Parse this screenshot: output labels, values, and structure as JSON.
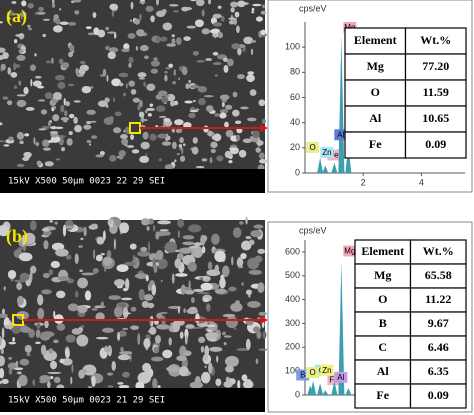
{
  "panels": [
    {
      "label": "(a)",
      "sem_bar": "15kV  X500  50μm  0023 22 29 SEI",
      "spectrum": {
        "unit": "cps/eV",
        "xlim": [
          0,
          5.5
        ],
        "ylim": [
          0,
          120
        ],
        "xticks": [
          2,
          4
        ],
        "yticks": [
          0,
          20,
          40,
          60,
          80,
          100
        ],
        "peaks": [
          {
            "label": "O",
            "x": 0.52,
            "y": 12,
            "color": "#e6ef8a"
          },
          {
            "label": "Fe",
            "x": 0.7,
            "y": 6,
            "color": "#f4b4c8"
          },
          {
            "label": "Zn",
            "x": 1.01,
            "y": 8,
            "color": "#a9e4f2"
          },
          {
            "label": "Mg",
            "x": 1.25,
            "y": 108,
            "color": "#f4a6b8"
          },
          {
            "label": "Al",
            "x": 1.49,
            "y": 22,
            "color": "#5b7bd8"
          }
        ]
      },
      "table": {
        "header": [
          "Element",
          "Wt.%"
        ],
        "rows": [
          [
            "Mg",
            "77.20"
          ],
          [
            "O",
            "11.59"
          ],
          [
            "Al",
            "10.65"
          ],
          [
            "Fe",
            "0.09"
          ]
        ]
      }
    },
    {
      "label": "(b)",
      "sem_bar": "15kV  X500  50μm  0023 21 29 SEI",
      "spectrum": {
        "unit": "cps/eV",
        "xlim": [
          0,
          5.5
        ],
        "ylim": [
          0,
          650
        ],
        "xticks": [
          2,
          4
        ],
        "yticks": [
          0,
          100,
          200,
          300,
          400,
          500,
          600
        ],
        "peaks": [
          {
            "label": "B",
            "x": 0.18,
            "y": 40,
            "color": "#7c9be8"
          },
          {
            "label": "C",
            "x": 0.28,
            "y": 60,
            "color": "#a9e4f2"
          },
          {
            "label": "O",
            "x": 0.52,
            "y": 50,
            "color": "#e6ef8a"
          },
          {
            "label": "Fe",
            "x": 0.7,
            "y": 20,
            "color": "#f4b4c8"
          },
          {
            "label": "Zn",
            "x": 1.01,
            "y": 60,
            "color": "#f2f27a"
          },
          {
            "label": "Mg",
            "x": 1.25,
            "y": 560,
            "color": "#f4a6b8"
          },
          {
            "label": "Al",
            "x": 1.49,
            "y": 30,
            "color": "#c39be8"
          }
        ]
      },
      "table": {
        "header": [
          "Element",
          "Wt.%"
        ],
        "rows": [
          [
            "Mg",
            "65.58"
          ],
          [
            "O",
            "11.22"
          ],
          [
            "B",
            "9.67"
          ],
          [
            "C",
            "6.46"
          ],
          [
            "Al",
            "6.35"
          ],
          [
            "Fe",
            "0.09"
          ]
        ]
      }
    }
  ]
}
